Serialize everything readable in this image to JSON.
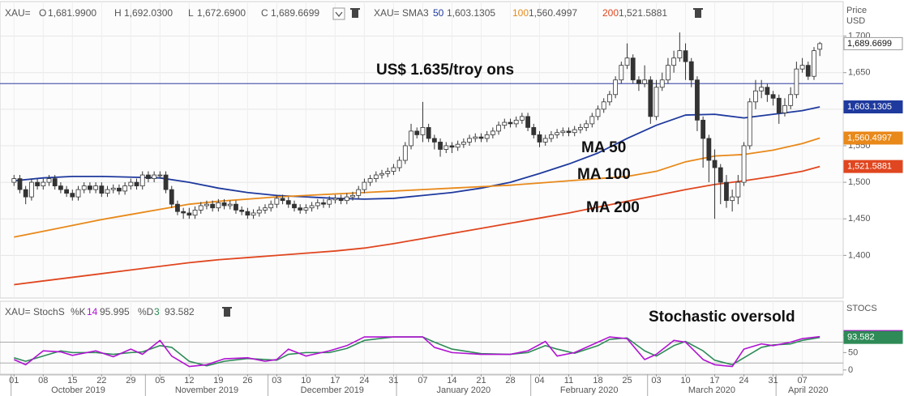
{
  "chart_data": {
    "type": "candlestick",
    "symbol": "XAU=",
    "ohlc_keys": [
      "O",
      "H",
      "L",
      "C"
    ],
    "last_labels": [
      "1,681.9900",
      "1,692.0300",
      "1,672.6900",
      "1,689.6699"
    ],
    "y_label": [
      "Price",
      "USD"
    ],
    "up_color": "#ffffff",
    "down_color": "#333333",
    "candles": [
      [
        1500,
        1510,
        1495,
        1505
      ],
      [
        1505,
        1510,
        1485,
        1490
      ],
      [
        1490,
        1495,
        1470,
        1480
      ],
      [
        1480,
        1505,
        1475,
        1500
      ],
      [
        1500,
        1505,
        1490,
        1495
      ],
      [
        1495,
        1505,
        1490,
        1500
      ],
      [
        1500,
        1510,
        1495,
        1505
      ],
      [
        1505,
        1510,
        1490,
        1495
      ],
      [
        1495,
        1500,
        1485,
        1490
      ],
      [
        1490,
        1495,
        1480,
        1485
      ],
      [
        1485,
        1490,
        1475,
        1480
      ],
      [
        1480,
        1495,
        1475,
        1490
      ],
      [
        1490,
        1500,
        1485,
        1495
      ],
      [
        1495,
        1500,
        1485,
        1490
      ],
      [
        1490,
        1500,
        1485,
        1495
      ],
      [
        1495,
        1500,
        1480,
        1485
      ],
      [
        1485,
        1495,
        1480,
        1490
      ],
      [
        1490,
        1497,
        1485,
        1492
      ],
      [
        1492,
        1497,
        1483,
        1488
      ],
      [
        1488,
        1500,
        1483,
        1495
      ],
      [
        1495,
        1505,
        1490,
        1500
      ],
      [
        1500,
        1505,
        1490,
        1495
      ],
      [
        1495,
        1515,
        1490,
        1510
      ],
      [
        1510,
        1515,
        1500,
        1505
      ],
      [
        1505,
        1515,
        1500,
        1510
      ],
      [
        1510,
        1515,
        1505,
        1510
      ],
      [
        1510,
        1515,
        1485,
        1490
      ],
      [
        1490,
        1495,
        1465,
        1470
      ],
      [
        1470,
        1475,
        1455,
        1460
      ],
      [
        1460,
        1465,
        1450,
        1458
      ],
      [
        1458,
        1465,
        1450,
        1455
      ],
      [
        1455,
        1467,
        1450,
        1462
      ],
      [
        1462,
        1473,
        1457,
        1468
      ],
      [
        1468,
        1475,
        1463,
        1470
      ],
      [
        1470,
        1475,
        1460,
        1465
      ],
      [
        1465,
        1477,
        1460,
        1472
      ],
      [
        1472,
        1477,
        1463,
        1468
      ],
      [
        1468,
        1475,
        1463,
        1470
      ],
      [
        1470,
        1475,
        1457,
        1462
      ],
      [
        1462,
        1467,
        1455,
        1460
      ],
      [
        1460,
        1465,
        1450,
        1455
      ],
      [
        1455,
        1463,
        1450,
        1458
      ],
      [
        1458,
        1467,
        1453,
        1462
      ],
      [
        1462,
        1470,
        1457,
        1465
      ],
      [
        1465,
        1475,
        1460,
        1470
      ],
      [
        1470,
        1483,
        1465,
        1478
      ],
      [
        1478,
        1483,
        1470,
        1475
      ],
      [
        1475,
        1480,
        1465,
        1470
      ],
      [
        1470,
        1475,
        1460,
        1465
      ],
      [
        1465,
        1470,
        1457,
        1462
      ],
      [
        1462,
        1470,
        1457,
        1465
      ],
      [
        1465,
        1473,
        1460,
        1468
      ],
      [
        1468,
        1477,
        1463,
        1472
      ],
      [
        1472,
        1477,
        1465,
        1470
      ],
      [
        1470,
        1481,
        1465,
        1476
      ],
      [
        1476,
        1483,
        1471,
        1478
      ],
      [
        1478,
        1483,
        1470,
        1475
      ],
      [
        1475,
        1485,
        1470,
        1480
      ],
      [
        1480,
        1487,
        1475,
        1482
      ],
      [
        1482,
        1495,
        1477,
        1490
      ],
      [
        1490,
        1505,
        1485,
        1500
      ],
      [
        1500,
        1510,
        1495,
        1505
      ],
      [
        1505,
        1515,
        1500,
        1510
      ],
      [
        1510,
        1517,
        1505,
        1512
      ],
      [
        1512,
        1520,
        1507,
        1515
      ],
      [
        1515,
        1525,
        1510,
        1520
      ],
      [
        1520,
        1535,
        1515,
        1530
      ],
      [
        1530,
        1555,
        1525,
        1550
      ],
      [
        1550,
        1580,
        1545,
        1570
      ],
      [
        1570,
        1575,
        1560,
        1565
      ],
      [
        1565,
        1610,
        1555,
        1575
      ],
      [
        1575,
        1580,
        1555,
        1560
      ],
      [
        1560,
        1565,
        1545,
        1555
      ],
      [
        1555,
        1560,
        1535,
        1545
      ],
      [
        1545,
        1555,
        1540,
        1550
      ],
      [
        1550,
        1555,
        1540,
        1548
      ],
      [
        1548,
        1557,
        1543,
        1552
      ],
      [
        1552,
        1560,
        1547,
        1555
      ],
      [
        1555,
        1565,
        1550,
        1560
      ],
      [
        1560,
        1567,
        1555,
        1562
      ],
      [
        1562,
        1567,
        1555,
        1560
      ],
      [
        1560,
        1570,
        1555,
        1565
      ],
      [
        1565,
        1575,
        1560,
        1570
      ],
      [
        1570,
        1583,
        1565,
        1578
      ],
      [
        1578,
        1587,
        1573,
        1582
      ],
      [
        1582,
        1587,
        1575,
        1580
      ],
      [
        1580,
        1590,
        1575,
        1585
      ],
      [
        1585,
        1595,
        1580,
        1590
      ],
      [
        1590,
        1595,
        1570,
        1575
      ],
      [
        1575,
        1580,
        1560,
        1565
      ],
      [
        1565,
        1570,
        1548,
        1555
      ],
      [
        1555,
        1565,
        1550,
        1560
      ],
      [
        1560,
        1570,
        1555,
        1565
      ],
      [
        1565,
        1573,
        1560,
        1568
      ],
      [
        1568,
        1575,
        1563,
        1570
      ],
      [
        1570,
        1575,
        1563,
        1568
      ],
      [
        1568,
        1577,
        1563,
        1572
      ],
      [
        1572,
        1580,
        1567,
        1575
      ],
      [
        1575,
        1585,
        1570,
        1580
      ],
      [
        1580,
        1595,
        1575,
        1590
      ],
      [
        1590,
        1605,
        1585,
        1600
      ],
      [
        1600,
        1615,
        1595,
        1610
      ],
      [
        1610,
        1625,
        1605,
        1620
      ],
      [
        1620,
        1645,
        1615,
        1640
      ],
      [
        1640,
        1665,
        1635,
        1660
      ],
      [
        1660,
        1690,
        1655,
        1670
      ],
      [
        1670,
        1675,
        1635,
        1640
      ],
      [
        1640,
        1645,
        1625,
        1635
      ],
      [
        1635,
        1660,
        1630,
        1640
      ],
      [
        1640,
        1645,
        1580,
        1590
      ],
      [
        1590,
        1640,
        1585,
        1630
      ],
      [
        1630,
        1650,
        1625,
        1640
      ],
      [
        1640,
        1670,
        1635,
        1660
      ],
      [
        1660,
        1680,
        1650,
        1670
      ],
      [
        1670,
        1705,
        1665,
        1680
      ],
      [
        1680,
        1690,
        1640,
        1665
      ],
      [
        1665,
        1670,
        1630,
        1640
      ],
      [
        1640,
        1645,
        1570,
        1585
      ],
      [
        1585,
        1590,
        1520,
        1560
      ],
      [
        1560,
        1565,
        1500,
        1530
      ],
      [
        1530,
        1545,
        1450,
        1520
      ],
      [
        1520,
        1525,
        1470,
        1500
      ],
      [
        1500,
        1510,
        1465,
        1475
      ],
      [
        1475,
        1490,
        1460,
        1480
      ],
      [
        1480,
        1510,
        1470,
        1500
      ],
      [
        1500,
        1555,
        1495,
        1550
      ],
      [
        1550,
        1615,
        1545,
        1610
      ],
      [
        1610,
        1640,
        1600,
        1625
      ],
      [
        1625,
        1640,
        1615,
        1630
      ],
      [
        1630,
        1635,
        1610,
        1620
      ],
      [
        1620,
        1625,
        1605,
        1615
      ],
      [
        1615,
        1620,
        1580,
        1595
      ],
      [
        1595,
        1615,
        1590,
        1605
      ],
      [
        1605,
        1630,
        1600,
        1620
      ],
      [
        1620,
        1665,
        1615,
        1655
      ],
      [
        1655,
        1670,
        1650,
        1660
      ],
      [
        1660,
        1665,
        1640,
        1645
      ],
      [
        1645,
        1685,
        1640,
        1680
      ],
      [
        1681.99,
        1692.03,
        1672.69,
        1689.6699
      ]
    ],
    "xlim": [
      -2.4,
      142
    ],
    "xticks": [
      {
        "value": 0,
        "label": "01"
      },
      {
        "value": 5,
        "label": "08"
      },
      {
        "value": 10,
        "label": "15"
      },
      {
        "value": 15,
        "label": "22"
      },
      {
        "value": 20,
        "label": "29"
      },
      {
        "value": 25,
        "label": "05"
      },
      {
        "value": 30,
        "label": "12"
      },
      {
        "value": 35,
        "label": "19"
      },
      {
        "value": 40,
        "label": "26"
      },
      {
        "value": 45,
        "label": "03"
      },
      {
        "value": 50,
        "label": "10"
      },
      {
        "value": 55,
        "label": "17"
      },
      {
        "value": 60,
        "label": "24"
      },
      {
        "value": 65,
        "label": "31"
      },
      {
        "value": 70,
        "label": "07"
      },
      {
        "value": 75,
        "label": "14"
      },
      {
        "value": 80,
        "label": "21"
      },
      {
        "value": 85,
        "label": "28"
      },
      {
        "value": 90,
        "label": "04"
      },
      {
        "value": 95,
        "label": "11"
      },
      {
        "value": 100,
        "label": "18"
      },
      {
        "value": 105,
        "label": "25"
      },
      {
        "value": 110,
        "label": "03"
      },
      {
        "value": 115,
        "label": "10"
      },
      {
        "value": 120,
        "label": "17"
      },
      {
        "value": 125,
        "label": "24"
      },
      {
        "value": 130,
        "label": "31"
      },
      {
        "value": 135,
        "label": "07"
      }
    ],
    "months": [
      {
        "value": 0,
        "label": "October 2019"
      },
      {
        "value": 23,
        "label": "November 2019"
      },
      {
        "value": 44,
        "label": "December 2019"
      },
      {
        "value": 66,
        "label": "January 2020"
      },
      {
        "value": 89,
        "label": "February 2020"
      },
      {
        "value": 109,
        "label": "March 2020"
      },
      {
        "value": 131,
        "label": "April 2020"
      }
    ],
    "ylim": [
      1345,
      1725
    ],
    "yticks": [
      {
        "value": 1400,
        "label": "1,400"
      },
      {
        "value": 1450,
        "label": "1,450"
      },
      {
        "value": 1500,
        "label": "1,500"
      },
      {
        "value": 1550,
        "label": "1,550"
      },
      {
        "value": 1600,
        "label": "1,600"
      },
      {
        "value": 1650,
        "label": "1,650"
      },
      {
        "value": 1700,
        "label": "1,700"
      }
    ],
    "grid": true,
    "sma_title": "XAU= SMA3",
    "series": [
      {
        "name": "50",
        "color": "#1f3a9e",
        "last_label": "1,603.1305",
        "x": [
          0,
          5,
          10,
          15,
          20,
          25,
          30,
          35,
          40,
          45,
          50,
          55,
          60,
          65,
          70,
          75,
          80,
          85,
          90,
          95,
          100,
          105,
          110,
          115,
          120,
          125,
          130,
          135,
          138
        ],
        "values": [
          1502,
          1506,
          1508,
          1508,
          1507,
          1506,
          1500,
          1492,
          1486,
          1482,
          1480,
          1478,
          1477,
          1478,
          1482,
          1486,
          1492,
          1500,
          1512,
          1525,
          1540,
          1560,
          1578,
          1592,
          1593,
          1588,
          1593,
          1598,
          1603.1305
        ]
      },
      {
        "name": "100",
        "color": "#e8891a",
        "last_label": "1,560.4997",
        "x": [
          0,
          5,
          10,
          15,
          20,
          25,
          30,
          35,
          40,
          45,
          50,
          55,
          60,
          65,
          70,
          75,
          80,
          85,
          90,
          95,
          100,
          105,
          110,
          115,
          120,
          125,
          130,
          135,
          138
        ],
        "values": [
          1425,
          1433,
          1441,
          1449,
          1456,
          1463,
          1470,
          1474,
          1477,
          1480,
          1482,
          1484,
          1486,
          1488,
          1490,
          1492,
          1494,
          1496,
          1499,
          1502,
          1505,
          1508,
          1515,
          1528,
          1536,
          1538,
          1544,
          1553,
          1560.4997
        ]
      },
      {
        "name": "200",
        "color": "#e0461f",
        "last_label": "1,521.5881",
        "x": [
          0,
          5,
          10,
          15,
          20,
          25,
          30,
          35,
          40,
          45,
          50,
          55,
          60,
          65,
          70,
          75,
          80,
          85,
          90,
          95,
          100,
          105,
          110,
          115,
          120,
          125,
          130,
          135,
          138
        ],
        "values": [
          1360,
          1365,
          1370,
          1375,
          1380,
          1385,
          1390,
          1394,
          1397,
          1400,
          1403,
          1406,
          1410,
          1416,
          1423,
          1430,
          1437,
          1444,
          1451,
          1458,
          1466,
          1474,
          1482,
          1490,
          1497,
          1502,
          1508,
          1515,
          1521.5881
        ]
      }
    ],
    "reference_line": {
      "value": 1635,
      "label": "US$ 1.635/troy ons",
      "color": "#5561b0"
    },
    "annotations": [
      "MA 50",
      "MA 100",
      "MA 200",
      "Stochastic oversold"
    ],
    "stoch": {
      "title": "XAU= StochS",
      "axis_label": "STOCS",
      "ylim": [
        -12,
        151
      ],
      "yticks": [
        0,
        50,
        100
      ],
      "levels": [
        20,
        80
      ],
      "x": [
        0,
        2,
        5,
        8,
        10,
        14,
        17,
        20,
        22,
        25,
        27,
        30,
        33,
        36,
        40,
        43,
        45,
        47,
        50,
        54,
        57,
        60,
        65,
        70,
        72,
        75,
        80,
        85,
        88,
        91,
        93,
        96,
        100,
        102,
        105,
        108,
        110,
        113,
        115,
        118,
        120,
        123,
        125,
        128,
        130,
        133,
        135,
        138
      ],
      "series": [
        {
          "name": "%K",
          "period": 14,
          "color": "#b012d2",
          "values": [
            30,
            15,
            55,
            52,
            42,
            55,
            38,
            60,
            45,
            85,
            40,
            10,
            15,
            32,
            35,
            25,
            30,
            60,
            40,
            55,
            70,
            95,
            95,
            95,
            65,
            50,
            45,
            45,
            55,
            82,
            40,
            50,
            80,
            95,
            90,
            30,
            45,
            85,
            80,
            30,
            15,
            10,
            60,
            75,
            70,
            80,
            90,
            95.995
          ]
        },
        {
          "name": "%D",
          "period": 3,
          "color": "#2e8b57",
          "values": [
            35,
            25,
            40,
            55,
            50,
            50,
            45,
            50,
            52,
            70,
            65,
            25,
            12,
            25,
            33,
            30,
            28,
            45,
            50,
            50,
            62,
            85,
            95,
            95,
            80,
            60,
            47,
            45,
            50,
            70,
            60,
            48,
            70,
            88,
            92,
            55,
            40,
            70,
            82,
            55,
            28,
            15,
            35,
            65,
            72,
            75,
            85,
            93.582
          ]
        }
      ]
    }
  }
}
